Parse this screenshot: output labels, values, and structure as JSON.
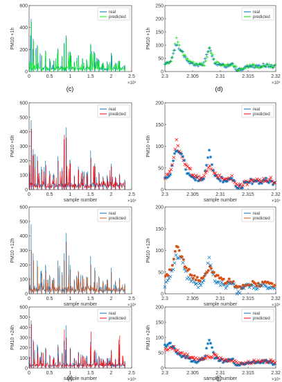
{
  "figure": {
    "panels": [
      {
        "id": "top-left",
        "caption": "",
        "xlabel": "",
        "ylabel": "PM10 +1h",
        "xexp": "×10⁴"
      },
      {
        "id": "top-right",
        "caption": "",
        "xlabel": "",
        "ylabel": "PM10 +1h",
        "xexp": "×10⁴"
      },
      {
        "id": "c",
        "caption": "(c)",
        "xlabel": "",
        "ylabel": "",
        "xexp": ""
      },
      {
        "id": "d",
        "caption": "(d)",
        "xlabel": "",
        "ylabel": "",
        "xexp": ""
      },
      {
        "id": "e",
        "caption": "(e)",
        "xlabel": "sample number",
        "ylabel": "PM10 +6h",
        "xexp": "×10⁴"
      },
      {
        "id": "f",
        "caption": "(f)",
        "xlabel": "sample number",
        "ylabel": "PM10 +6h",
        "xexp": "×10⁴"
      },
      {
        "id": "g",
        "caption": "(g)",
        "xlabel": "sample number",
        "ylabel": "PM10 +12h",
        "xexp": "×10⁴"
      },
      {
        "id": "h",
        "caption": "(h)",
        "xlabel": "sample number",
        "ylabel": "PM10 +12h",
        "xexp": "×10⁴"
      },
      {
        "id": "i",
        "caption": "(i)",
        "xlabel": "sample number",
        "ylabel": "PM10 +24h",
        "xexp": "×10⁴"
      },
      {
        "id": "j",
        "caption": "(j)",
        "xlabel": "sample number",
        "ylabel": "PM10 +24h",
        "xexp": "×10⁴"
      }
    ]
  },
  "chart_data": [
    {
      "type": "line",
      "panel": "top-left",
      "ylabel": "PM10 +1h",
      "xlim": [
        0,
        2.5
      ],
      "ylim": [
        0,
        600
      ],
      "xticks": [
        "0",
        "0.5",
        "1",
        "1.5",
        "2",
        "2.5"
      ],
      "yticks": [
        "0",
        "200",
        "400",
        "600"
      ],
      "legend": "top-right",
      "series": [
        {
          "name": "real",
          "color": "#0072bd"
        },
        {
          "name": "predicted",
          "color": "#00ff00"
        }
      ],
      "x": [
        0,
        0.05,
        0.1,
        0.2,
        0.3,
        0.4,
        0.5,
        0.6,
        0.7,
        0.8,
        0.85,
        0.9,
        1.0,
        1.1,
        1.2,
        1.3,
        1.4,
        1.5,
        1.6,
        1.7,
        1.8,
        1.9,
        2.0,
        2.1,
        2.2,
        2.33
      ],
      "real": [
        100,
        480,
        300,
        240,
        150,
        190,
        120,
        100,
        210,
        140,
        260,
        330,
        180,
        90,
        150,
        120,
        110,
        250,
        170,
        110,
        80,
        90,
        170,
        80,
        100,
        60
      ],
      "predicted": [
        90,
        450,
        280,
        230,
        140,
        180,
        110,
        95,
        200,
        130,
        250,
        310,
        170,
        85,
        140,
        115,
        105,
        240,
        160,
        100,
        75,
        85,
        160,
        75,
        95,
        55
      ]
    },
    {
      "type": "scatter",
      "panel": "top-right",
      "ylabel": "PM10 +1h",
      "xlim": [
        2.3,
        2.32
      ],
      "ylim": [
        0,
        250
      ],
      "xticks": [
        "2.3",
        "2.305",
        "2.31",
        "2.315",
        "2.32"
      ],
      "yticks": [
        "0",
        "50",
        "100",
        "150",
        "200",
        "250"
      ],
      "legend": "top-right",
      "series": [
        {
          "name": "real",
          "color": "#0072bd",
          "marker": "+"
        },
        {
          "name": "predicted",
          "color": "#00dd00",
          "marker": "+"
        }
      ],
      "x": [
        2.3,
        2.301,
        2.302,
        2.303,
        2.304,
        2.305,
        2.306,
        2.307,
        2.308,
        2.309,
        2.31,
        2.311,
        2.312,
        2.313,
        2.314,
        2.315,
        2.316,
        2.317,
        2.318,
        2.319,
        2.32
      ],
      "real": [
        25,
        38,
        100,
        80,
        40,
        30,
        22,
        30,
        90,
        35,
        25,
        20,
        35,
        5,
        10,
        22,
        20,
        20,
        25,
        20,
        15
      ],
      "predicted": [
        28,
        35,
        125,
        70,
        45,
        33,
        25,
        28,
        85,
        38,
        27,
        22,
        30,
        8,
        12,
        20,
        22,
        18,
        22,
        22,
        18
      ]
    },
    {
      "type": "line",
      "panel": "e",
      "xlabel": "sample number",
      "ylabel": "PM10 +6h",
      "xlim": [
        0,
        2.5
      ],
      "ylim": [
        0,
        600
      ],
      "xticks": [
        "0",
        "0.5",
        "1",
        "1.5",
        "2",
        "2.5"
      ],
      "yticks": [
        "0",
        "100",
        "200",
        "300",
        "400",
        "500",
        "600"
      ],
      "legend": "top-right",
      "series": [
        {
          "name": "real",
          "color": "#0072bd"
        },
        {
          "name": "predicted",
          "color": "#ff0000"
        }
      ],
      "x": [
        0,
        0.05,
        0.1,
        0.2,
        0.3,
        0.4,
        0.5,
        0.6,
        0.7,
        0.8,
        0.85,
        0.9,
        1.0,
        1.1,
        1.2,
        1.3,
        1.4,
        1.5,
        1.6,
        1.7,
        1.8,
        1.9,
        2.0,
        2.1,
        2.2,
        2.33
      ],
      "real": [
        120,
        480,
        280,
        230,
        160,
        200,
        130,
        110,
        230,
        150,
        280,
        430,
        200,
        100,
        160,
        130,
        120,
        270,
        180,
        120,
        90,
        100,
        180,
        90,
        110,
        70
      ],
      "predicted": [
        100,
        420,
        240,
        200,
        140,
        170,
        110,
        100,
        200,
        130,
        380,
        360,
        180,
        90,
        140,
        120,
        110,
        220,
        160,
        110,
        80,
        90,
        160,
        80,
        100,
        60
      ]
    },
    {
      "type": "scatter",
      "panel": "f",
      "xlabel": "sample number",
      "ylabel": "PM10 +6h",
      "xlim": [
        2.3,
        2.32
      ],
      "ylim": [
        0,
        200
      ],
      "xticks": [
        "2.3",
        "2.305",
        "2.31",
        "2.315",
        "2.32"
      ],
      "yticks": [
        "0",
        "50",
        "100",
        "150",
        "200"
      ],
      "legend": "top-right",
      "series": [
        {
          "name": "real",
          "color": "#0072bd",
          "marker": "*"
        },
        {
          "name": "predicted",
          "color": "#ff0000",
          "marker": "x"
        }
      ],
      "x": [
        2.3,
        2.301,
        2.302,
        2.303,
        2.304,
        2.305,
        2.306,
        2.307,
        2.308,
        2.309,
        2.31,
        2.311,
        2.312,
        2.313,
        2.314,
        2.315,
        2.316,
        2.317,
        2.318,
        2.319,
        2.32
      ],
      "real": [
        25,
        40,
        90,
        85,
        40,
        30,
        20,
        30,
        85,
        30,
        25,
        20,
        30,
        5,
        10,
        20,
        18,
        18,
        22,
        18,
        12
      ],
      "predicted": [
        30,
        45,
        110,
        70,
        50,
        35,
        25,
        30,
        55,
        38,
        28,
        22,
        28,
        10,
        12,
        18,
        22,
        20,
        20,
        22,
        18
      ]
    },
    {
      "type": "line",
      "panel": "g",
      "xlabel": "sample number",
      "ylabel": "PM10 +12h",
      "xlim": [
        0,
        2.5
      ],
      "ylim": [
        0,
        600
      ],
      "xticks": [
        "0",
        "0.5",
        "1",
        "1.5",
        "2",
        "2.5"
      ],
      "yticks": [
        "0",
        "100",
        "200",
        "300",
        "400",
        "500",
        "600"
      ],
      "legend": "top-right",
      "series": [
        {
          "name": "real",
          "color": "#0072bd"
        },
        {
          "name": "predicted",
          "color": "#d95319"
        }
      ],
      "x": [
        0,
        0.05,
        0.1,
        0.2,
        0.3,
        0.4,
        0.5,
        0.6,
        0.7,
        0.8,
        0.85,
        0.9,
        1.0,
        1.1,
        1.2,
        1.3,
        1.4,
        1.5,
        1.6,
        1.7,
        1.8,
        1.9,
        2.0,
        2.1,
        2.2,
        2.33
      ],
      "real": [
        120,
        480,
        280,
        230,
        160,
        200,
        130,
        110,
        230,
        150,
        280,
        420,
        200,
        100,
        160,
        130,
        120,
        260,
        180,
        120,
        90,
        100,
        180,
        90,
        110,
        70
      ],
      "predicted": [
        110,
        300,
        230,
        190,
        140,
        160,
        120,
        100,
        180,
        130,
        230,
        360,
        170,
        90,
        150,
        120,
        110,
        200,
        160,
        110,
        80,
        90,
        150,
        80,
        100,
        60
      ]
    },
    {
      "type": "scatter",
      "panel": "h",
      "xlabel": "sample number",
      "ylabel": "PM10 +12h",
      "xlim": [
        2.3,
        2.32
      ],
      "ylim": [
        0,
        200
      ],
      "xticks": [
        "2.3",
        "2.305",
        "2.31",
        "2.315",
        "2.32"
      ],
      "yticks": [
        "0",
        "50",
        "100",
        "150",
        "200"
      ],
      "legend": "top-right",
      "series": [
        {
          "name": "real",
          "color": "#0072bd",
          "marker": "x"
        },
        {
          "name": "predicted",
          "color": "#d95319",
          "marker": "o"
        }
      ],
      "x": [
        2.3,
        2.301,
        2.302,
        2.303,
        2.304,
        2.305,
        2.306,
        2.307,
        2.308,
        2.309,
        2.31,
        2.311,
        2.312,
        2.313,
        2.314,
        2.315,
        2.316,
        2.317,
        2.318,
        2.319,
        2.32
      ],
      "real": [
        20,
        35,
        85,
        80,
        40,
        30,
        20,
        28,
        80,
        30,
        22,
        18,
        28,
        5,
        8,
        18,
        16,
        16,
        20,
        15,
        10
      ],
      "predicted": [
        35,
        55,
        115,
        80,
        55,
        40,
        30,
        35,
        60,
        45,
        35,
        28,
        30,
        12,
        15,
        20,
        25,
        22,
        22,
        25,
        20
      ]
    },
    {
      "type": "line",
      "panel": "i",
      "xlabel": "sample number",
      "ylabel": "PM10 +24h",
      "xlim": [
        0,
        2.5
      ],
      "ylim": [
        0,
        600
      ],
      "xticks": [
        "0",
        "0.5",
        "1",
        "1.5",
        "2",
        "2.5"
      ],
      "yticks": [
        "0",
        "100",
        "200",
        "300",
        "400",
        "500",
        "600"
      ],
      "legend": "top-right",
      "series": [
        {
          "name": "real",
          "color": "#0072bd"
        },
        {
          "name": "predicted",
          "color": "#ff0000"
        }
      ],
      "x": [
        0,
        0.05,
        0.1,
        0.2,
        0.3,
        0.4,
        0.5,
        0.6,
        0.7,
        0.8,
        0.85,
        0.9,
        1.0,
        1.1,
        1.2,
        1.3,
        1.4,
        1.5,
        1.6,
        1.7,
        1.8,
        1.9,
        2.0,
        2.1,
        2.2,
        2.33
      ],
      "real": [
        120,
        470,
        280,
        230,
        160,
        200,
        130,
        110,
        230,
        150,
        270,
        420,
        200,
        100,
        160,
        130,
        120,
        260,
        180,
        120,
        90,
        100,
        180,
        90,
        110,
        70
      ],
      "predicted": [
        110,
        430,
        260,
        210,
        150,
        190,
        120,
        100,
        210,
        140,
        380,
        300,
        190,
        95,
        150,
        120,
        110,
        360,
        170,
        110,
        85,
        95,
        170,
        85,
        320,
        60
      ]
    },
    {
      "type": "scatter",
      "panel": "j",
      "xlabel": "sample number",
      "ylabel": "PM10 +24h",
      "xlim": [
        2.3,
        2.32
      ],
      "ylim": [
        0,
        200
      ],
      "xticks": [
        "2.3",
        "2.305",
        "2.31",
        "2.315",
        "2.32"
      ],
      "yticks": [
        "0",
        "50",
        "100",
        "150",
        "200"
      ],
      "legend": "top-right",
      "series": [
        {
          "name": "real",
          "color": "#0072bd",
          "marker": "*"
        },
        {
          "name": "predicted",
          "color": "#ff0000",
          "marker": "x"
        }
      ],
      "x": [
        2.3,
        2.301,
        2.302,
        2.303,
        2.304,
        2.305,
        2.306,
        2.307,
        2.308,
        2.309,
        2.31,
        2.311,
        2.312,
        2.313,
        2.314,
        2.315,
        2.316,
        2.317,
        2.318,
        2.319,
        2.32
      ],
      "real": [
        75,
        80,
        55,
        40,
        35,
        25,
        20,
        30,
        90,
        35,
        25,
        20,
        30,
        8,
        10,
        20,
        18,
        18,
        22,
        18,
        12
      ],
      "predicted": [
        60,
        70,
        60,
        45,
        40,
        30,
        30,
        35,
        40,
        40,
        30,
        25,
        28,
        12,
        15,
        20,
        22,
        22,
        25,
        22,
        15
      ]
    }
  ]
}
